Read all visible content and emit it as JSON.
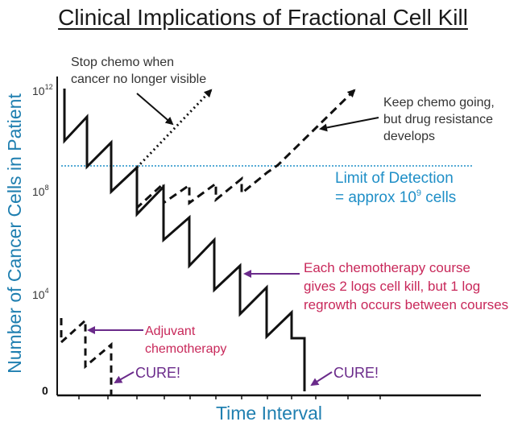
{
  "title": "Clinical Implications of Fractional Cell Kill",
  "y_axis_label": "Number of Cancer Cells in Patient",
  "x_axis_label": "Time Interval",
  "ticks": {
    "t12": "10",
    "t12_exp": "12",
    "t8": "10",
    "t8_exp": "8",
    "t4": "10",
    "t4_exp": "4",
    "t0": "0"
  },
  "annotations": {
    "stop_chemo_1": "Stop chemo when",
    "stop_chemo_2": "cancer no longer visible",
    "keep_going_1": "Keep chemo going,",
    "keep_going_2": "but drug resistance",
    "keep_going_3": "develops",
    "lod_1": "Limit of Detection",
    "lod_2_prefix": "= approx 10",
    "lod_2_exp": "9",
    "lod_2_suffix": " cells",
    "each_course_1": "Each chemotherapy course",
    "each_course_2": "gives 2 logs cell kill, but 1 log",
    "each_course_3": "regrowth occurs between courses",
    "adjuvant_1": "Adjuvant",
    "adjuvant_2": "chemotherapy",
    "cure_1": "CURE!",
    "cure_2": "CURE!"
  },
  "colors": {
    "axis_label": "#1f7fb0",
    "lod": "#1f8fc7",
    "magenta": "#c8285a",
    "purple": "#6a2a8a",
    "ink": "#111111",
    "gray_text": "#333333"
  }
}
